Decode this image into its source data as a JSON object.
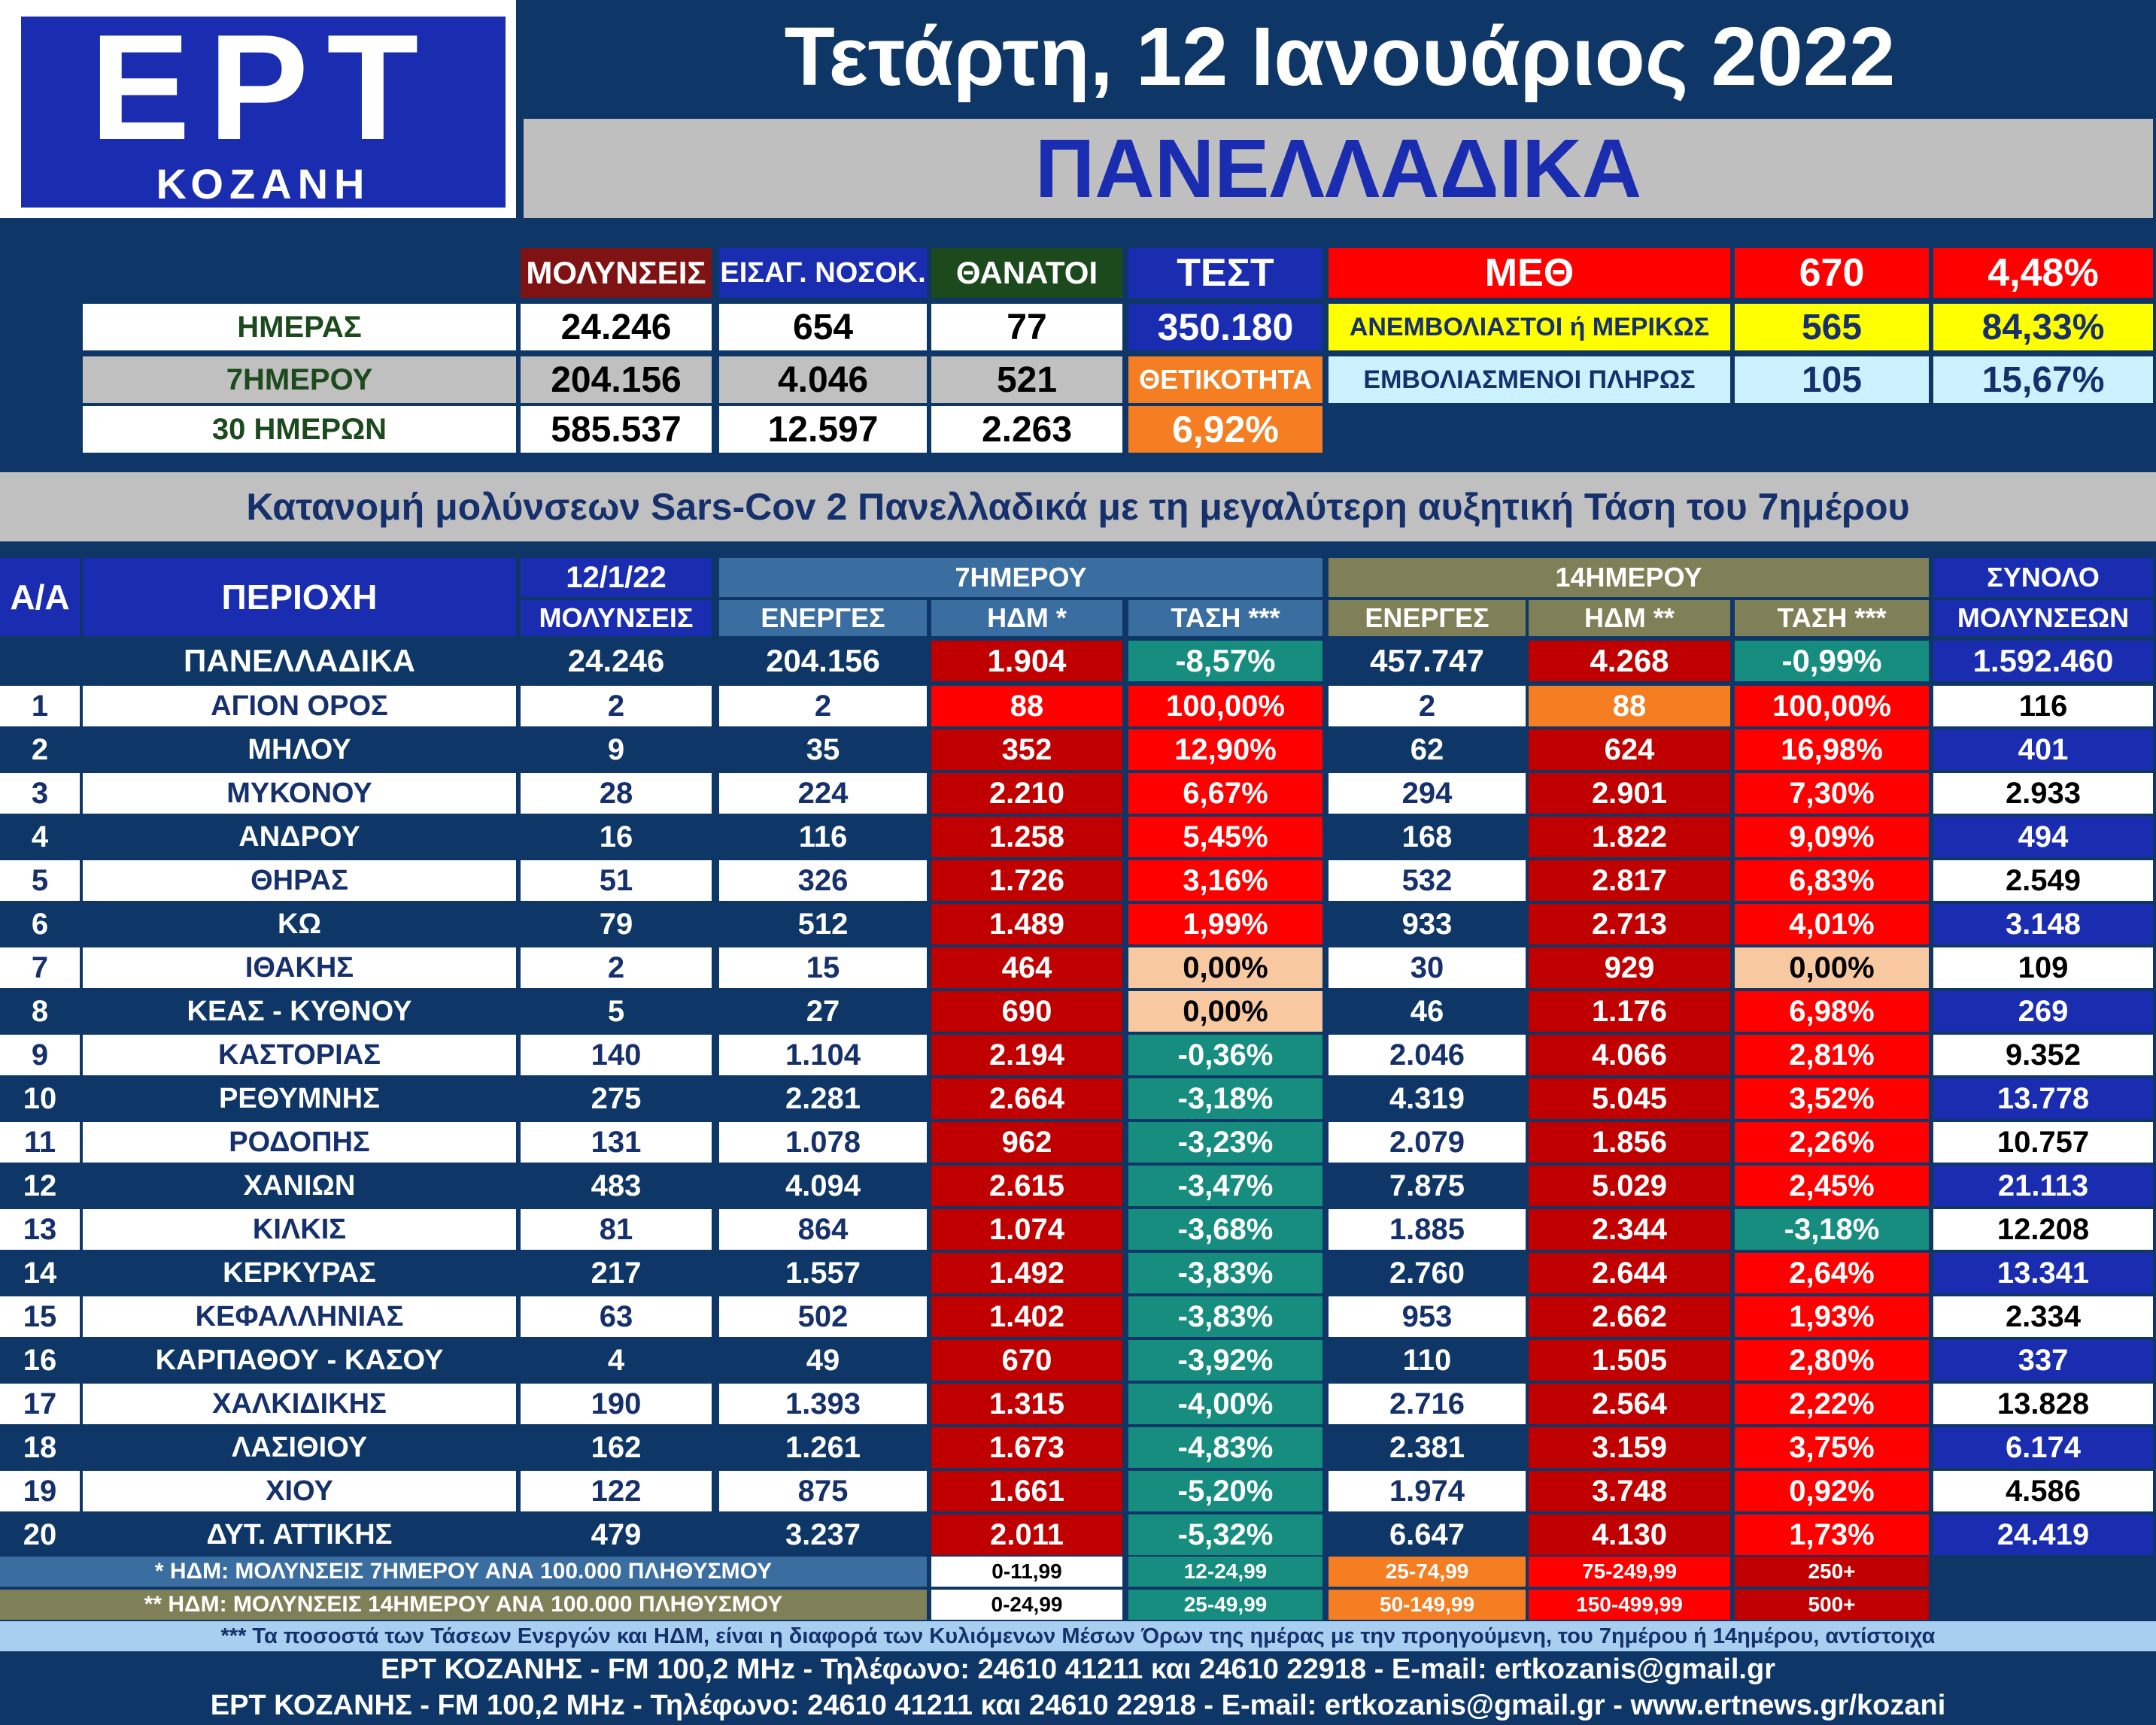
{
  "logo": {
    "brand": "ΕΡΤ",
    "city": "ΚΟΖΑΝΗ"
  },
  "header": {
    "date": "Τετάρτη, 12 Ιανουάριος 2022",
    "region": "ΠΑΝΕΛΛΑΔΙΚΑ"
  },
  "summary": {
    "headers": {
      "infections": "ΜΟΛΥΝΣΕΙΣ",
      "admissions": "ΕΙΣΑΓ. ΝΟΣΟΚ.",
      "deaths": "ΘΑΝΑΤΟΙ",
      "tests": "ΤΕΣΤ"
    },
    "rows": [
      {
        "label": "ΗΜΕΡΑΣ",
        "infections": "24.246",
        "admissions": "654",
        "deaths": "77"
      },
      {
        "label": "7ΗΜΕΡΟΥ",
        "infections": "204.156",
        "admissions": "4.046",
        "deaths": "521"
      },
      {
        "label": "30 ΗΜΕΡΩΝ",
        "infections": "585.537",
        "admissions": "12.597",
        "deaths": "2.263"
      }
    ],
    "tests_value": "350.180",
    "positivity_label": "ΘΕΤΙΚΟΤΗΤΑ",
    "positivity_value": "6,92%"
  },
  "icu": {
    "label": "ΜΕΘ",
    "total": "670",
    "total_pct": "4,48%",
    "unvaccinated_label": "ΑΝΕΜΒΟΛΙΑΣΤΟΙ ή ΜΕΡΙΚΩΣ",
    "unvaccinated": "565",
    "unvaccinated_pct": "84,33%",
    "vaccinated_label": "ΕΜΒΟΛΙΑΣΜΕΝΟΙ ΠΛΗΡΩΣ",
    "vaccinated": "105",
    "vaccinated_pct": "15,67%"
  },
  "subtitle": "Κατανομή μολύνσεων Sars-Cov 2 Πανελλαδικά με τη μεγαλύτερη αυξητική Τάση του 7ημέρου",
  "table": {
    "headers": {
      "aa": "Α/Α",
      "area": "ΠΕΡΙΟΧΗ",
      "date": "12/1/22",
      "infections": "ΜΟΛΥΝΣΕΙΣ",
      "week": "7ΗΜΕΡΟΥ",
      "fortnight": "14ΗΜΕΡΟΥ",
      "active": "ΕΝΕΡΓΕΣ",
      "hdm7": "ΗΔΜ *",
      "trend7": "ΤΑΣΗ ***",
      "active14": "ΕΝΕΡΓΕΣ",
      "hdm14": "ΗΔΜ **",
      "trend14": "ΤΑΣΗ ***",
      "total_top": "ΣΥΝΟΛΟ",
      "total_bottom": "ΜΟΛΥΝΣΕΩΝ"
    },
    "national": {
      "area": "ΠΑΝΕΛΛΑΔΙΚΑ",
      "infections": "24.246",
      "active7": "204.156",
      "hdm7": "1.904",
      "trend7": "-8,57%",
      "active14": "457.747",
      "hdm14": "4.268",
      "trend14": "-0,99%",
      "total": "1.592.460"
    },
    "rows": [
      {
        "n": "1",
        "area": "ΑΓΙΟΝ ΟΡΟΣ",
        "inf": "2",
        "a7": "2",
        "h7": "88",
        "t7": "100,00%",
        "a14": "2",
        "h14": "88",
        "t14": "100,00%",
        "tot": "116"
      },
      {
        "n": "2",
        "area": "ΜΗΛΟΥ",
        "inf": "9",
        "a7": "35",
        "h7": "352",
        "t7": "12,90%",
        "a14": "62",
        "h14": "624",
        "t14": "16,98%",
        "tot": "401"
      },
      {
        "n": "3",
        "area": "ΜΥΚΟΝΟΥ",
        "inf": "28",
        "a7": "224",
        "h7": "2.210",
        "t7": "6,67%",
        "a14": "294",
        "h14": "2.901",
        "t14": "7,30%",
        "tot": "2.933"
      },
      {
        "n": "4",
        "area": "ΑΝΔΡΟΥ",
        "inf": "16",
        "a7": "116",
        "h7": "1.258",
        "t7": "5,45%",
        "a14": "168",
        "h14": "1.822",
        "t14": "9,09%",
        "tot": "494"
      },
      {
        "n": "5",
        "area": "ΘΗΡΑΣ",
        "inf": "51",
        "a7": "326",
        "h7": "1.726",
        "t7": "3,16%",
        "a14": "532",
        "h14": "2.817",
        "t14": "6,83%",
        "tot": "2.549"
      },
      {
        "n": "6",
        "area": "ΚΩ",
        "inf": "79",
        "a7": "512",
        "h7": "1.489",
        "t7": "1,99%",
        "a14": "933",
        "h14": "2.713",
        "t14": "4,01%",
        "tot": "3.148"
      },
      {
        "n": "7",
        "area": "ΙΘΑΚΗΣ",
        "inf": "2",
        "a7": "15",
        "h7": "464",
        "t7": "0,00%",
        "a14": "30",
        "h14": "929",
        "t14": "0,00%",
        "tot": "109"
      },
      {
        "n": "8",
        "area": "ΚΕΑΣ - ΚΥΘΝΟΥ",
        "inf": "5",
        "a7": "27",
        "h7": "690",
        "t7": "0,00%",
        "a14": "46",
        "h14": "1.176",
        "t14": "6,98%",
        "tot": "269"
      },
      {
        "n": "9",
        "area": "ΚΑΣΤΟΡΙΑΣ",
        "inf": "140",
        "a7": "1.104",
        "h7": "2.194",
        "t7": "-0,36%",
        "a14": "2.046",
        "h14": "4.066",
        "t14": "2,81%",
        "tot": "9.352"
      },
      {
        "n": "10",
        "area": "ΡΕΘΥΜΝΗΣ",
        "inf": "275",
        "a7": "2.281",
        "h7": "2.664",
        "t7": "-3,18%",
        "a14": "4.319",
        "h14": "5.045",
        "t14": "3,52%",
        "tot": "13.778"
      },
      {
        "n": "11",
        "area": "ΡΟΔΟΠΗΣ",
        "inf": "131",
        "a7": "1.078",
        "h7": "962",
        "t7": "-3,23%",
        "a14": "2.079",
        "h14": "1.856",
        "t14": "2,26%",
        "tot": "10.757"
      },
      {
        "n": "12",
        "area": "ΧΑΝΙΩΝ",
        "inf": "483",
        "a7": "4.094",
        "h7": "2.615",
        "t7": "-3,47%",
        "a14": "7.875",
        "h14": "5.029",
        "t14": "2,45%",
        "tot": "21.113"
      },
      {
        "n": "13",
        "area": "ΚΙΛΚΙΣ",
        "inf": "81",
        "a7": "864",
        "h7": "1.074",
        "t7": "-3,68%",
        "a14": "1.885",
        "h14": "2.344",
        "t14": "-3,18%",
        "tot": "12.208"
      },
      {
        "n": "14",
        "area": "ΚΕΡΚΥΡΑΣ",
        "inf": "217",
        "a7": "1.557",
        "h7": "1.492",
        "t7": "-3,83%",
        "a14": "2.760",
        "h14": "2.644",
        "t14": "2,64%",
        "tot": "13.341"
      },
      {
        "n": "15",
        "area": "ΚΕΦΑΛΛΗΝΙΑΣ",
        "inf": "63",
        "a7": "502",
        "h7": "1.402",
        "t7": "-3,83%",
        "a14": "953",
        "h14": "2.662",
        "t14": "1,93%",
        "tot": "2.334"
      },
      {
        "n": "16",
        "area": "ΚΑΡΠΑΘΟΥ - ΚΑΣΟΥ",
        "inf": "4",
        "a7": "49",
        "h7": "670",
        "t7": "-3,92%",
        "a14": "110",
        "h14": "1.505",
        "t14": "2,80%",
        "tot": "337"
      },
      {
        "n": "17",
        "area": "ΧΑΛΚΙΔΙΚΗΣ",
        "inf": "190",
        "a7": "1.393",
        "h7": "1.315",
        "t7": "-4,00%",
        "a14": "2.716",
        "h14": "2.564",
        "t14": "2,22%",
        "tot": "13.828"
      },
      {
        "n": "18",
        "area": "ΛΑΣΙΘΙΟΥ",
        "inf": "162",
        "a7": "1.261",
        "h7": "1.673",
        "t7": "-4,83%",
        "a14": "2.381",
        "h14": "3.159",
        "t14": "3,75%",
        "tot": "6.174"
      },
      {
        "n": "19",
        "area": "ΧΙΟΥ",
        "inf": "122",
        "a7": "875",
        "h7": "1.661",
        "t7": "-5,20%",
        "a14": "1.974",
        "h14": "3.748",
        "t14": "0,92%",
        "tot": "4.586"
      },
      {
        "n": "20",
        "area": "ΔΥΤ. ΑΤΤΙΚΗΣ",
        "inf": "479",
        "a7": "3.237",
        "h7": "2.011",
        "t7": "-5,32%",
        "a14": "6.647",
        "h14": "4.130",
        "t14": "1,73%",
        "tot": "24.419"
      }
    ]
  },
  "legend": {
    "note7": "* ΗΔΜ: ΜΟΛΥΝΣΕΙΣ 7ΗΜΕΡΟΥ ΑΝΑ 100.000 ΠΛΗΘΥΣΜΟΥ",
    "note14": "** ΗΔΜ: ΜΟΛΥΝΣΕΙΣ 14ΗΜΕΡΟΥ ΑΝΑ 100.000 ΠΛΗΘΥΣΜΟΥ",
    "ranges7": [
      "0-11,99",
      "12-24,99",
      "25-74,99",
      "75-249,99",
      "250+"
    ],
    "ranges14": [
      "0-24,99",
      "25-49,99",
      "50-149,99",
      "150-499,99",
      "500+"
    ],
    "colors": [
      "#ffffff",
      "#178d80",
      "#f57d22",
      "#ff0000",
      "#c00000"
    ]
  },
  "footer": {
    "note": "*** Τα ποσοστά των Τάσεων Ενεργών και ΗΔΜ, είναι η διαφορά των Κυλιόμενων Μέσων Όρων της ημέρας με την προηγούμενη, του 7ημέρου ή 14ημέρου, αντίστοιχα",
    "line1": "ΕΡΤ ΚΟΖΑΝΗΣ - FM 100,2 MHz - Τηλέφωνο:  24610 41211 και 24610 22918 - E-mail: ertkozanis@gmail.gr",
    "line2": "ΕΡΤ ΚΟΖΑΝΗΣ - FM 100,2 MHz - Τηλέφωνο:  24610 41211 και 24610 22918 - E-mail: ertkozanis@gmail.gr - www.ertnews.gr/kozani"
  }
}
